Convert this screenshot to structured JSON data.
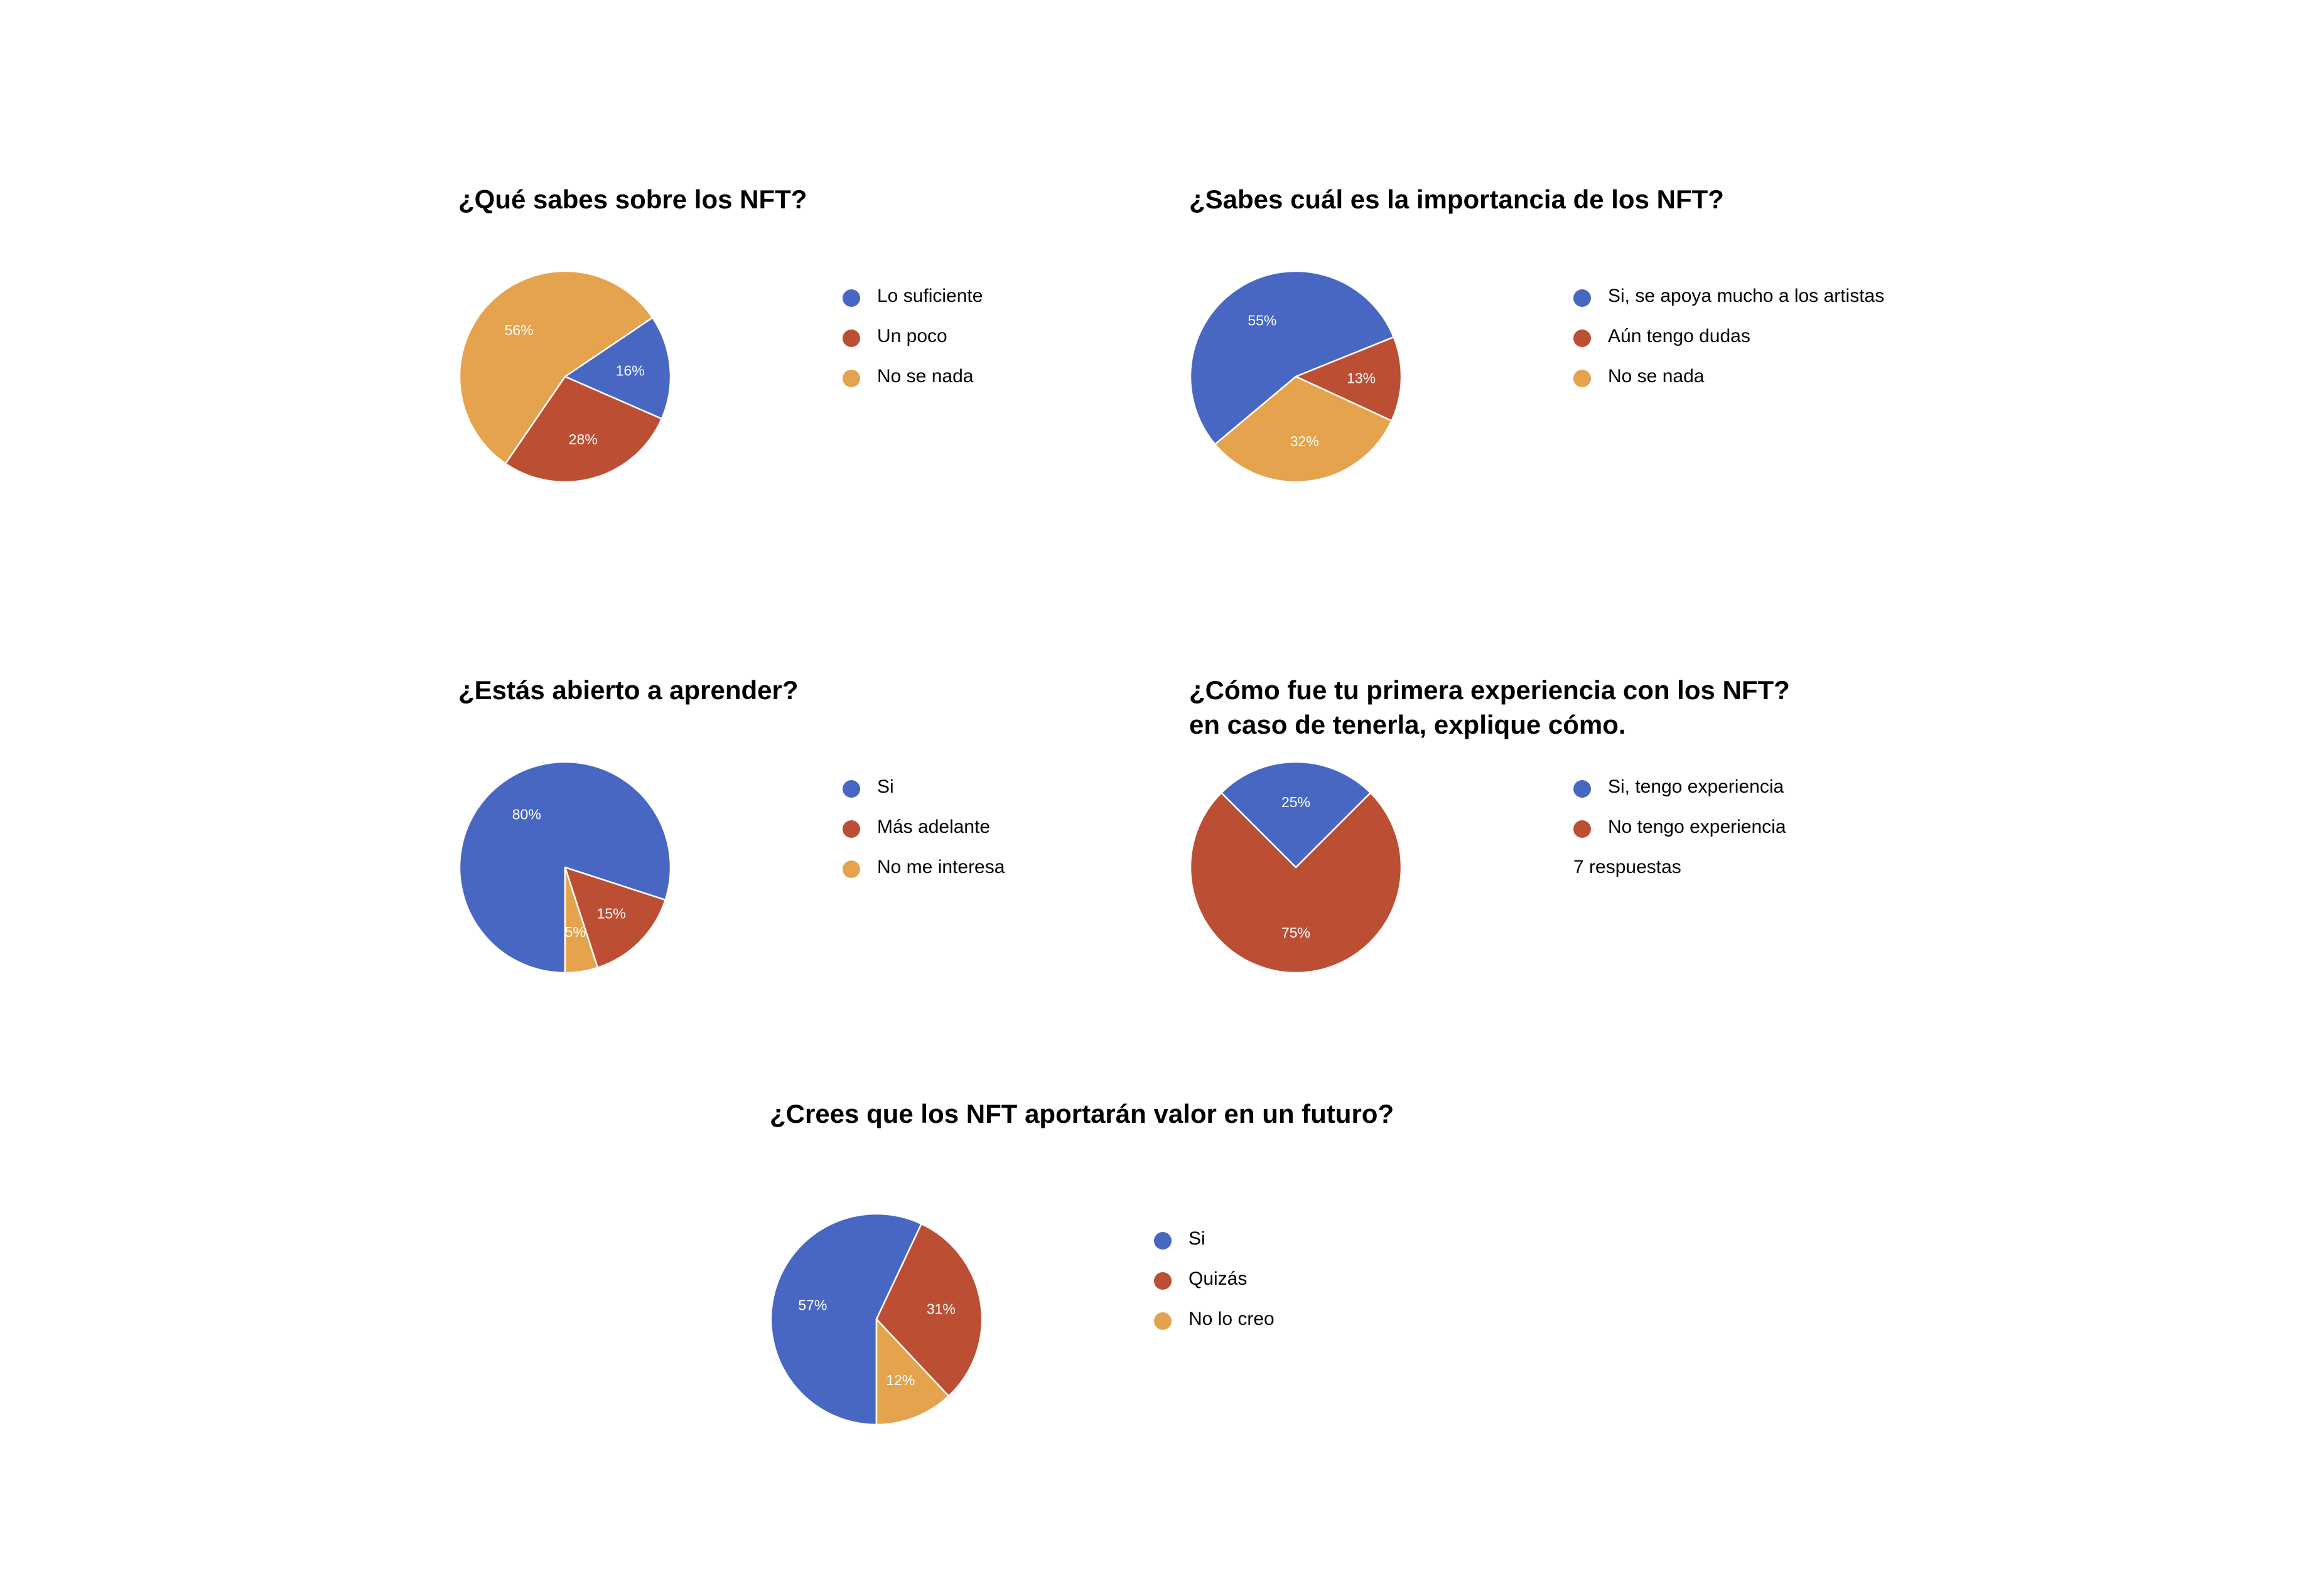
{
  "palette": {
    "blue": "#4867C2",
    "red": "#BC4F33",
    "orange": "#E4A34C",
    "slice_stroke": "#ffffff",
    "label_text": "#ffffff"
  },
  "chart_data": [
    {
      "type": "pie",
      "title": "¿Qué sabes sobre los NFT?",
      "categories": [
        "Lo suficiente",
        "Un poco",
        "No se nada"
      ],
      "values": [
        16,
        28,
        56
      ],
      "labels": [
        "16%",
        "28%",
        "56%"
      ],
      "colors": [
        "#4867C2",
        "#BC4F33",
        "#E4A34C"
      ],
      "start_angle_deg": 56,
      "legend": "right",
      "note": ""
    },
    {
      "type": "pie",
      "title": "¿Sabes cuál es la importancia de los NFT?",
      "categories": [
        "Si, se apoya mucho a los artistas",
        "Aún tengo dudas",
        "No se nada"
      ],
      "values": [
        55,
        13,
        32
      ],
      "labels": [
        "55%",
        "13%",
        "32%"
      ],
      "colors": [
        "#4867C2",
        "#BC4F33",
        "#E4A34C"
      ],
      "start_angle_deg": 230,
      "legend": "right",
      "note": ""
    },
    {
      "type": "pie",
      "title": "¿Estás abierto a aprender?",
      "categories": [
        "Si",
        "Más adelante",
        "No me interesa"
      ],
      "values": [
        80,
        15,
        5
      ],
      "labels": [
        "80%",
        "15%",
        "5%"
      ],
      "colors": [
        "#4867C2",
        "#BC4F33",
        "#E4A34C"
      ],
      "start_angle_deg": 180,
      "legend": "right",
      "note": ""
    },
    {
      "type": "pie",
      "title": "¿Cómo fue tu primera experiencia con los NFT?\nen caso de tenerla, explique cómo.",
      "categories": [
        "Si, tengo experiencia",
        "No tengo experiencia"
      ],
      "values": [
        25,
        75
      ],
      "labels": [
        "25%",
        "75%"
      ],
      "colors": [
        "#4867C2",
        "#BC4F33"
      ],
      "start_angle_deg": 315,
      "legend": "right",
      "note": "7 respuestas"
    },
    {
      "type": "pie",
      "title": "¿Crees que los NFT aportarán valor en un futuro?",
      "categories": [
        "Si",
        "Quizás",
        "No lo creo"
      ],
      "values": [
        57,
        31,
        12
      ],
      "labels": [
        "57%",
        "31%",
        "12%"
      ],
      "colors": [
        "#4867C2",
        "#BC4F33",
        "#E4A34C"
      ],
      "start_angle_deg": 180,
      "legend": "right",
      "note": ""
    }
  ]
}
